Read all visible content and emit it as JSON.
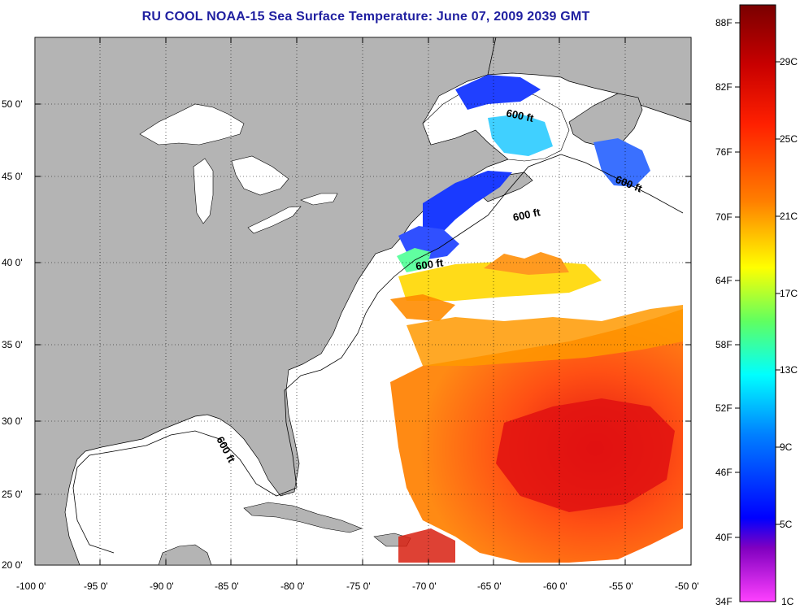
{
  "title": "RU COOL  NOAA-15  Sea Surface Temperature:  June 07, 2009 2039 GMT",
  "lat_labels": [
    "50 0'",
    "45 0'",
    "40 0'",
    "35 0'",
    "30 0'",
    "25 0'",
    "20 0'"
  ],
  "lon_labels": [
    "-100 0'",
    "-95 0'",
    "-90 0'",
    "-85 0'",
    "-80 0'",
    "-75 0'",
    "-70 0'",
    "-65 0'",
    "-60 0'",
    "-55 0'",
    "-50 0'"
  ],
  "isobath_label": "600 ft",
  "colorbar": {
    "fahrenheit": [
      "88F",
      "82F",
      "76F",
      "70F",
      "64F",
      "58F",
      "52F",
      "46F",
      "40F",
      "34F"
    ],
    "celsius": [
      "29C",
      "25C",
      "21C",
      "17C",
      "13C",
      "9C",
      "5C",
      "1C"
    ],
    "colors": [
      "#8b0000",
      "#ff2000",
      "#ff8000",
      "#ffff00",
      "#40ff80",
      "#00e0ff",
      "#0060ff",
      "#0000ff",
      "#8000c0",
      "#ff40ff"
    ]
  },
  "colors": {
    "land": "#b4b4b4",
    "title": "#1f1fa0"
  }
}
